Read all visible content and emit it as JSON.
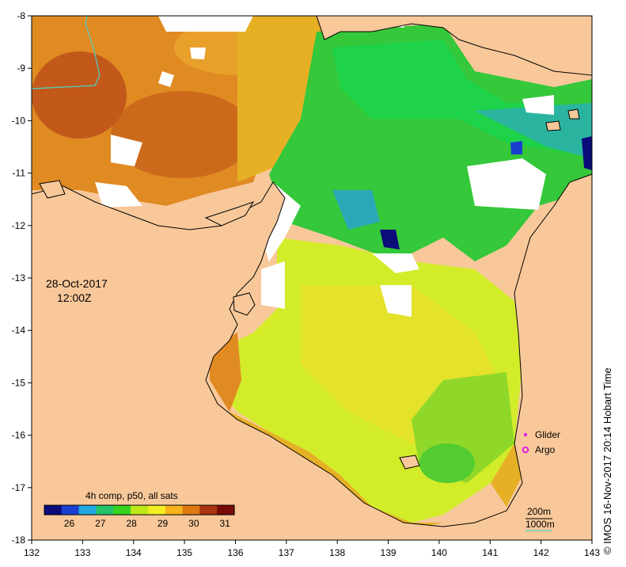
{
  "map": {
    "date": "28-Oct-2017",
    "time": "12:00Z",
    "credit": "© IMOS 16-Nov-2017 20:14 Hobart Time",
    "lon_ticks": [
      "132",
      "133",
      "134",
      "135",
      "136",
      "137",
      "138",
      "139",
      "140",
      "141",
      "142",
      "143"
    ],
    "lat_ticks": [
      "-8",
      "-9",
      "-10",
      "-11",
      "-12",
      "-13",
      "-14",
      "-15",
      "-16",
      "-17",
      "-18"
    ],
    "lon_range": [
      132,
      143
    ],
    "lat_range": [
      -18,
      -8
    ],
    "legend": {
      "glider": "Glider",
      "argo": "Argo",
      "glider_color": "#e020e0",
      "argo_color": "#e020e0"
    },
    "contours": {
      "c200": "200m",
      "c1000": "1000m",
      "c200_color": "#000000",
      "c1000_color": "#4fd1c5"
    },
    "colorbar": {
      "title": "4h comp, p50, all sats",
      "ticks": [
        "26",
        "27",
        "28",
        "29",
        "30",
        "31"
      ],
      "range": [
        25.2,
        31.3
      ],
      "colors": [
        "#0b0b7a",
        "#1a3fd0",
        "#1fa8e0",
        "#22c36a",
        "#37d11f",
        "#bde81a",
        "#f2ee22",
        "#f5b21a",
        "#dd7a12",
        "#a8350e",
        "#7a0a0a"
      ]
    },
    "colors": {
      "land": "#f8c89a",
      "no_data": "#ffffff",
      "sst_warm": "#d9701e",
      "sst_green": "#35cc33",
      "sst_yellow": "#d9ee2a"
    }
  }
}
